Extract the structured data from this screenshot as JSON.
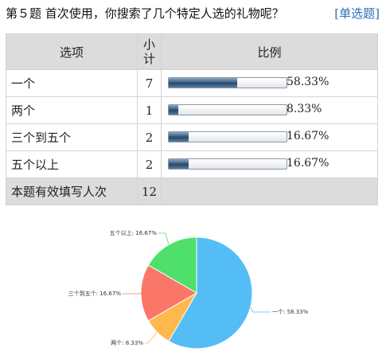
{
  "question": {
    "title": "第５题  首次使用，你搜索了几个特定人选的礼物呢？",
    "type": "[单选题]"
  },
  "table": {
    "headers": {
      "option": "选项",
      "count": "小计",
      "ratio": "比例"
    },
    "rows": [
      {
        "option": "一个",
        "count": "7",
        "percent": "58.33%",
        "fraction": 0.5833
      },
      {
        "option": "两个",
        "count": "1",
        "percent": "8.33%",
        "fraction": 0.0833
      },
      {
        "option": "三个到五个",
        "count": "2",
        "percent": "16.67%",
        "fraction": 0.1667
      },
      {
        "option": "五个以上",
        "count": "2",
        "percent": "16.67%",
        "fraction": 0.1667
      }
    ],
    "total": {
      "label": "本题有效填写人次",
      "count": "12"
    }
  },
  "chart_data": {
    "type": "pie",
    "slices": [
      {
        "label": "一个: 58.33%",
        "value": 58.33,
        "color": "#55bdf5"
      },
      {
        "label": "两个: 8.33%",
        "value": 8.33,
        "color": "#ffb84d"
      },
      {
        "label": "三个到五个: 16.67%",
        "value": 16.67,
        "color": "#fa7668"
      },
      {
        "label": "五个以上: 16.67%",
        "value": 16.67,
        "color": "#4ee06a"
      }
    ]
  }
}
